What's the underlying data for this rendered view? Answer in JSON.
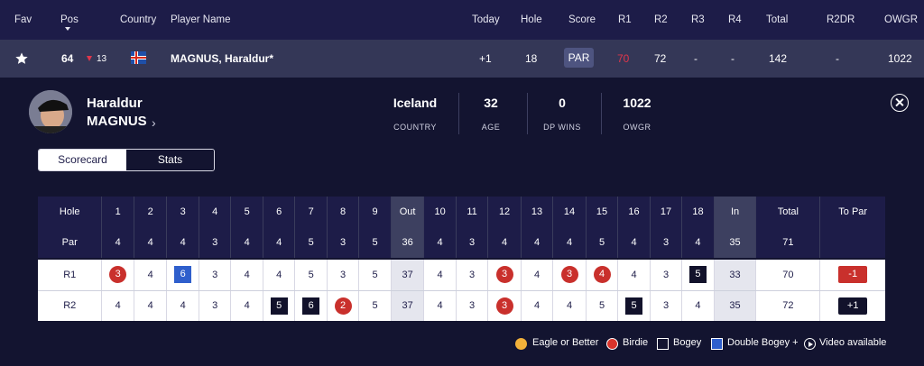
{
  "header": {
    "fav": "Fav",
    "pos": "Pos",
    "country": "Country",
    "player_name": "Player Name",
    "today": "Today",
    "hole": "Hole",
    "score": "Score",
    "r1": "R1",
    "r2": "R2",
    "r3": "R3",
    "r4": "R4",
    "total": "Total",
    "r2dr": "R2DR",
    "owgr": "OWGR"
  },
  "player_row": {
    "position": "64",
    "movement": "13",
    "name": "MAGNUS, Haraldur*",
    "today": "+1",
    "hole": "18",
    "score": "PAR",
    "r1": "70",
    "r2": "72",
    "r3": "-",
    "r4": "-",
    "total": "142",
    "r2dr": "-",
    "owgr": "1022"
  },
  "profile": {
    "first_name": "Haraldur",
    "last_name": "MAGNUS",
    "chevron": "›",
    "stats": [
      {
        "value": "Iceland",
        "label": "COUNTRY"
      },
      {
        "value": "32",
        "label": "AGE"
      },
      {
        "value": "0",
        "label": "DP WINS"
      },
      {
        "value": "1022",
        "label": "OWGR"
      }
    ]
  },
  "tabs": {
    "scorecard": "Scorecard",
    "stats": "Stats"
  },
  "scorecard": {
    "hole_label": "Hole",
    "par_label": "Par",
    "holes": [
      "1",
      "2",
      "3",
      "4",
      "5",
      "6",
      "7",
      "8",
      "9",
      "Out",
      "10",
      "11",
      "12",
      "13",
      "14",
      "15",
      "16",
      "17",
      "18",
      "In",
      "Total",
      "To Par"
    ],
    "par": [
      "4",
      "4",
      "4",
      "3",
      "4",
      "4",
      "5",
      "3",
      "5",
      "36",
      "4",
      "3",
      "4",
      "4",
      "4",
      "5",
      "4",
      "3",
      "4",
      "35",
      "71",
      ""
    ],
    "rounds": [
      {
        "label": "R1",
        "scores": [
          "3",
          "4",
          "6",
          "3",
          "4",
          "4",
          "5",
          "3",
          "5",
          "37",
          "4",
          "3",
          "3",
          "4",
          "3",
          "4",
          "4",
          "3",
          "5",
          "33",
          "70"
        ],
        "marks": [
          "birdie",
          "",
          "dbogey",
          "",
          "",
          "",
          "",
          "",
          "",
          "",
          "",
          "",
          "birdie",
          "",
          "birdie",
          "birdie",
          "",
          "",
          "bogey",
          "",
          ""
        ],
        "to_par": "-1",
        "to_par_style": "under"
      },
      {
        "label": "R2",
        "scores": [
          "4",
          "4",
          "4",
          "3",
          "4",
          "5",
          "6",
          "2",
          "5",
          "37",
          "4",
          "3",
          "3",
          "4",
          "4",
          "5",
          "5",
          "3",
          "4",
          "35",
          "72"
        ],
        "marks": [
          "",
          "",
          "",
          "",
          "",
          "bogey",
          "bogey",
          "birdie",
          "",
          "",
          "",
          "",
          "birdie",
          "",
          "",
          "",
          "bogey",
          "",
          "",
          "",
          ""
        ],
        "to_par": "+1",
        "to_par_style": "over"
      }
    ]
  },
  "legend": {
    "eagle": "Eagle or Better",
    "birdie": "Birdie",
    "bogey": "Bogey",
    "double_bogey": "Double Bogey +",
    "video": "Video available"
  },
  "colors": {
    "background": "#131430",
    "header": "#1d1c48",
    "player_row": "#343757",
    "birdie": "#c9302c",
    "bogey": "#12122b",
    "double_bogey": "#2f5fcc",
    "eagle": "#f2b13a"
  }
}
